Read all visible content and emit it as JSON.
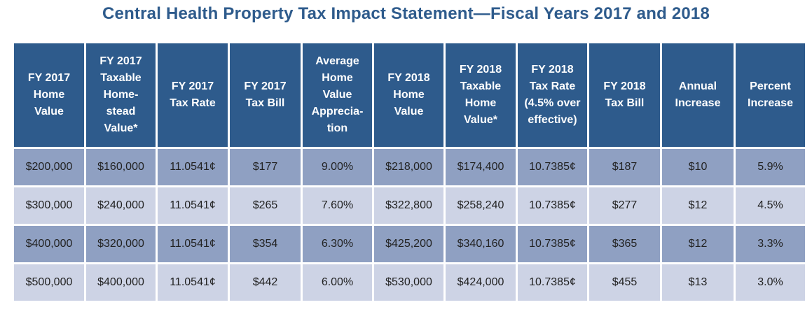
{
  "title": "Central Health Property Tax Impact Statement—Fiscal Years 2017 and 2018",
  "columns": [
    "FY 2017 Home Value",
    "FY 2017 Taxable Home-stead Value*",
    "FY 2017 Tax Rate",
    "FY 2017 Tax Bill",
    "Average Home Value Apprecia-tion",
    "FY 2018 Home Value",
    "FY 2018 Taxable Home Value*",
    "FY 2018 Tax Rate (4.5% over effective)",
    "FY 2018 Tax Bill",
    "Annual Increase",
    "Percent Increase"
  ],
  "rows": [
    [
      "$200,000",
      "$160,000",
      "11.0541¢",
      "$177",
      "9.00%",
      "$218,000",
      "$174,400",
      "10.7385¢",
      "$187",
      "$10",
      "5.9%"
    ],
    [
      "$300,000",
      "$240,000",
      "11.0541¢",
      "$265",
      "7.60%",
      "$322,800",
      "$258,240",
      "10.7385¢",
      "$277",
      "$12",
      "4.5%"
    ],
    [
      "$400,000",
      "$320,000",
      "11.0541¢",
      "$354",
      "6.30%",
      "$425,200",
      "$340,160",
      "10.7385¢",
      "$365",
      "$12",
      "3.3%"
    ],
    [
      "$500,000",
      "$400,000",
      "11.0541¢",
      "$442",
      "6.00%",
      "$530,000",
      "$424,000",
      "10.7385¢",
      "$455",
      "$13",
      "3.0%"
    ]
  ],
  "colors": {
    "title": "#2e5b8c",
    "header_bg": "#2e5b8c",
    "row_dark": "#8fa0c2",
    "row_light": "#cdd3e5"
  }
}
